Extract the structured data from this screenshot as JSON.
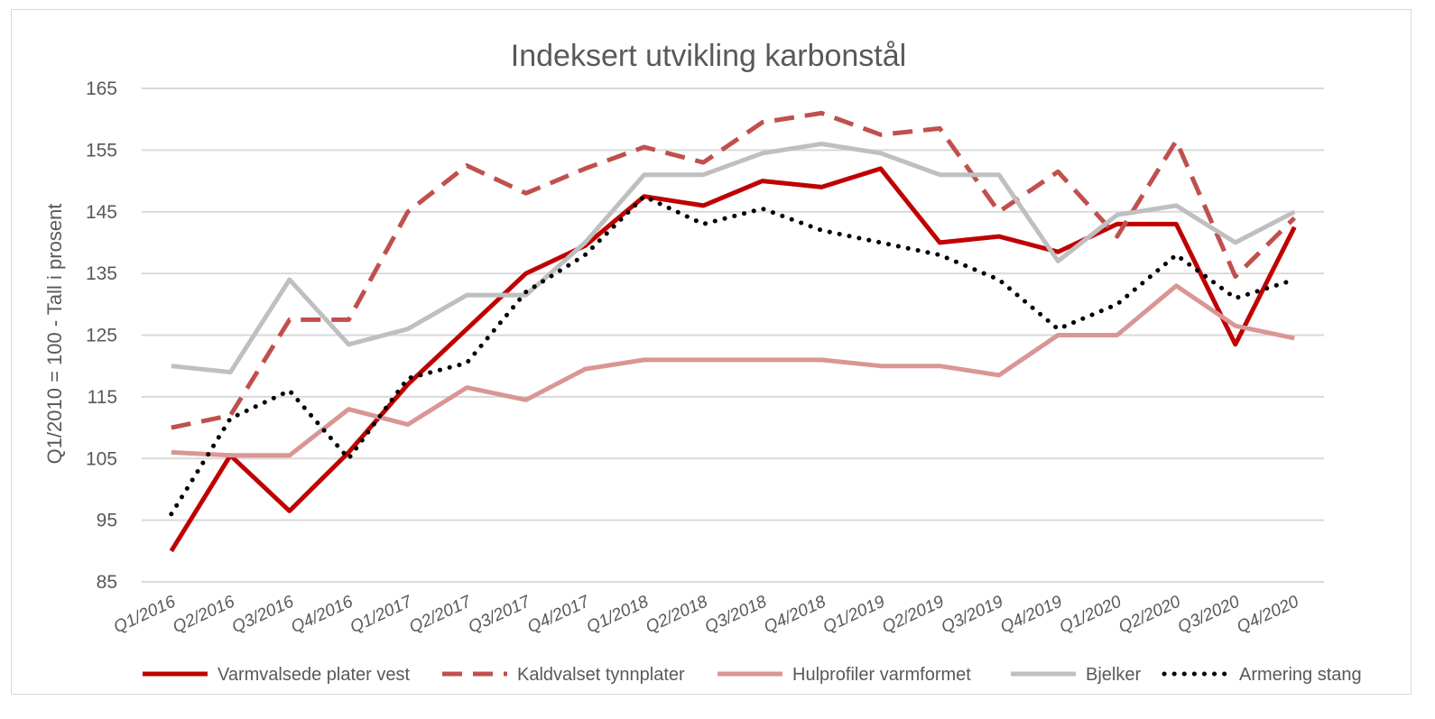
{
  "chart_data": {
    "type": "line",
    "title": "Indeksert utvikling karbonstål",
    "ylabel": "Q1/2010 = 100 - Tall i prosent",
    "xlabel": "",
    "ylim": [
      85,
      165
    ],
    "yticks": [
      85,
      95,
      105,
      115,
      125,
      135,
      145,
      155,
      165
    ],
    "grid": true,
    "legend_position": "bottom",
    "categories": [
      "Q1/2016",
      "Q2/2016",
      "Q3/2016",
      "Q4/2016",
      "Q1/2017",
      "Q2/2017",
      "Q3/2017",
      "Q4/2017",
      "Q1/2018",
      "Q2/2018",
      "Q3/2018",
      "Q4/2018",
      "Q1/2019",
      "Q2/2019",
      "Q3/2019",
      "Q4/2019",
      "Q1/2020",
      "Q2/2020",
      "Q3/2020",
      "Q4/2020"
    ],
    "series": [
      {
        "name": "Varmvalsede plater vest",
        "color": "#c00000",
        "style": "solid",
        "width": 5,
        "values": [
          90,
          105.5,
          96.5,
          106,
          117,
          126,
          135,
          139.5,
          147.5,
          146,
          150,
          149,
          152,
          140,
          141,
          138.5,
          143,
          143,
          123.5,
          142.5
        ]
      },
      {
        "name": "Kaldvalset tynnplater",
        "color": "#c0504d",
        "style": "dashed",
        "width": 5,
        "values": [
          110,
          112,
          127.5,
          127.5,
          145,
          152.5,
          148,
          152,
          155.5,
          153,
          159.5,
          161,
          157.5,
          158.5,
          145,
          151.5,
          141,
          156.5,
          134.5,
          144
        ]
      },
      {
        "name": "Hulprofiler varmformet",
        "color": "#d99694",
        "style": "solid",
        "width": 5,
        "values": [
          106,
          105.5,
          105.5,
          113,
          110.5,
          116.5,
          114.5,
          119.5,
          121,
          121,
          121,
          121,
          120,
          120,
          118.5,
          125,
          125,
          133,
          126.5,
          124.5
        ]
      },
      {
        "name": "Bjelker",
        "color": "#bfbfbf",
        "style": "solid",
        "width": 5,
        "values": [
          120,
          119,
          134,
          123.5,
          126,
          131.5,
          131.5,
          140,
          151,
          151,
          154.5,
          156,
          154.5,
          151,
          151,
          137,
          144.5,
          146,
          140,
          145
        ]
      },
      {
        "name": "Armering stang",
        "color": "#000000",
        "style": "dotted",
        "width": 5,
        "values": [
          96,
          111.5,
          116,
          105,
          118,
          120.5,
          132,
          138,
          147.5,
          143,
          145.5,
          142,
          140,
          138,
          134,
          126,
          130,
          138,
          131,
          134
        ]
      }
    ]
  }
}
